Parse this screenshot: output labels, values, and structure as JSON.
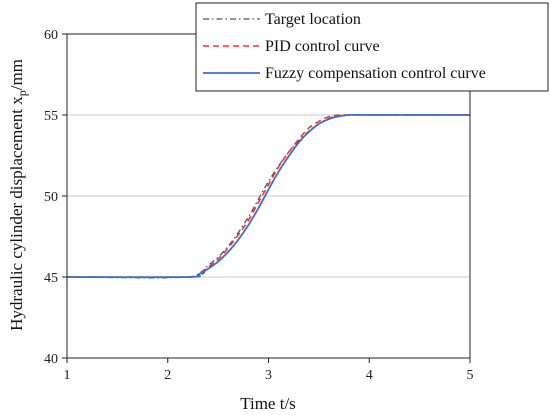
{
  "chart_data": {
    "type": "line",
    "title": "",
    "xlabel": "Time t/s",
    "ylabel_main": "Hydraulic cylinder displacement x",
    "ylabel_sub": "p",
    "ylabel_unit": "/mm",
    "xlim": [
      1,
      5
    ],
    "ylim": [
      40,
      60
    ],
    "xticks": [
      1,
      2,
      3,
      4,
      5
    ],
    "yticks": [
      40,
      45,
      50,
      55,
      60
    ],
    "grid": "horizontal",
    "legend_position": "top-right",
    "series": [
      {
        "name": "Target location",
        "color": "#555555",
        "style": "dash-dot",
        "x": [
          1.0,
          2.2,
          2.4,
          2.6,
          2.8,
          3.0,
          3.2,
          3.4,
          3.6,
          3.8,
          4.0,
          5.0
        ],
        "y": [
          45.0,
          45.0,
          45.7,
          46.9,
          48.7,
          50.9,
          52.7,
          54.0,
          54.8,
          55.0,
          55.0,
          55.0
        ]
      },
      {
        "name": "PID control curve",
        "color": "#ff3030",
        "style": "dashed",
        "x": [
          1.0,
          2.2,
          2.3,
          2.4,
          2.5,
          2.6,
          2.7,
          2.8,
          2.9,
          3.0,
          3.1,
          3.2,
          3.3,
          3.4,
          3.5,
          3.6,
          3.7,
          3.8,
          4.0,
          5.0
        ],
        "y": [
          45.0,
          45.0,
          45.2,
          45.6,
          46.1,
          46.8,
          47.6,
          48.5,
          49.6,
          50.7,
          51.8,
          52.7,
          53.5,
          54.2,
          54.6,
          54.9,
          55.0,
          55.0,
          55.0,
          55.0
        ]
      },
      {
        "name": "Fuzzy compensation control curve",
        "color": "#3a6fd0",
        "style": "solid",
        "x": [
          1.0,
          2.2,
          2.3,
          2.4,
          2.5,
          2.6,
          2.7,
          2.8,
          2.9,
          3.0,
          3.1,
          3.2,
          3.3,
          3.4,
          3.5,
          3.6,
          3.7,
          3.8,
          3.9,
          4.0,
          5.0
        ],
        "y": [
          45.0,
          45.0,
          45.15,
          45.5,
          45.95,
          46.55,
          47.3,
          48.2,
          49.25,
          50.4,
          51.5,
          52.45,
          53.3,
          53.95,
          54.45,
          54.75,
          54.92,
          55.0,
          55.0,
          55.0,
          55.0
        ]
      }
    ]
  }
}
